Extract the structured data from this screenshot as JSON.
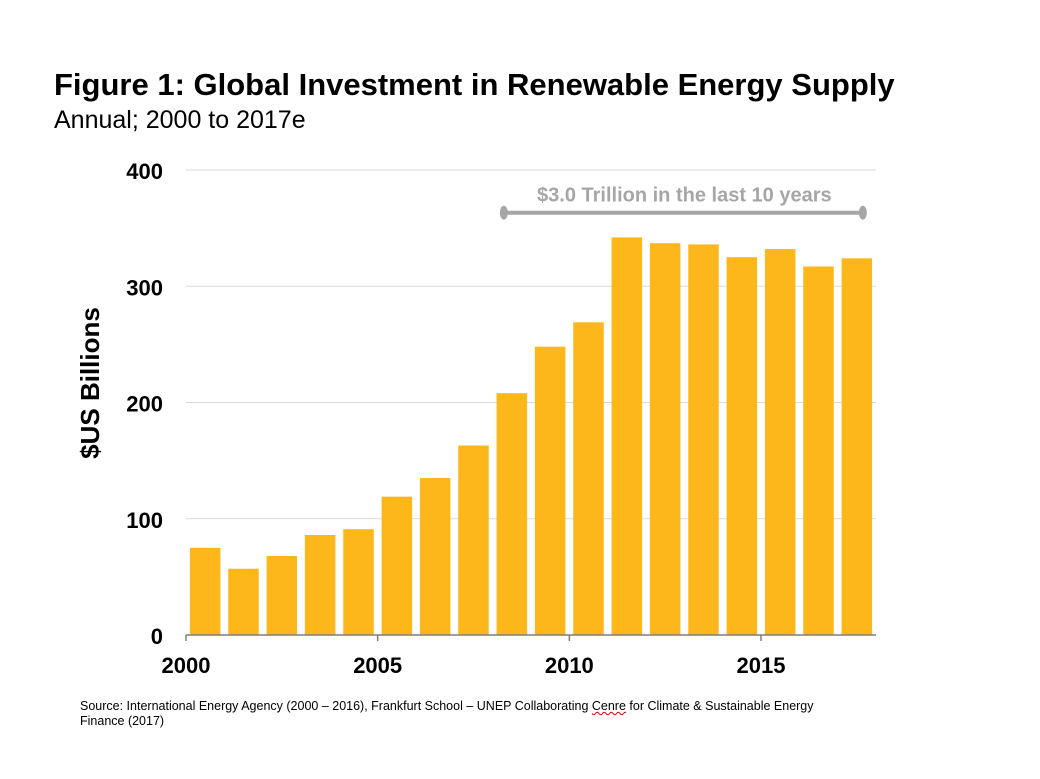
{
  "title": "Figure 1: Global Investment in Renewable Energy Supply",
  "subtitle": "Annual; 2000 to 2017e",
  "colors": {
    "bar": "#FDB71A",
    "grid": "#d9d9d9",
    "axis": "#7f7f7f",
    "annotation": "#a6a6a6"
  },
  "source": {
    "before": "Source: International Energy Agency (2000 – 2016), Frankfurt School – UNEP Collaborating ",
    "underlined": "Cenre",
    "after": " for Climate & Sustainable Energy Finance (2017)"
  },
  "chart_data": {
    "type": "bar",
    "ylabel": "$US Billions",
    "xlabel": "",
    "ylim": [
      0,
      400
    ],
    "yticks": [
      0,
      100,
      200,
      300,
      400
    ],
    "xtick_labels": [
      "2000",
      "2005",
      "2010",
      "2015"
    ],
    "grid": true,
    "categories": [
      "2000",
      "2001",
      "2002",
      "2003",
      "2004",
      "2005",
      "2006",
      "2007",
      "2008",
      "2009",
      "2010",
      "2011",
      "2012",
      "2013",
      "2014",
      "2015",
      "2016",
      "2017e"
    ],
    "values": [
      75,
      57,
      68,
      86,
      91,
      119,
      135,
      163,
      208,
      248,
      269,
      342,
      337,
      336,
      325,
      332,
      317,
      324
    ],
    "annotation": {
      "text": "$3.0 Trillion in the last 10 years",
      "from": "2008",
      "to": "2017e",
      "y": 365
    }
  }
}
